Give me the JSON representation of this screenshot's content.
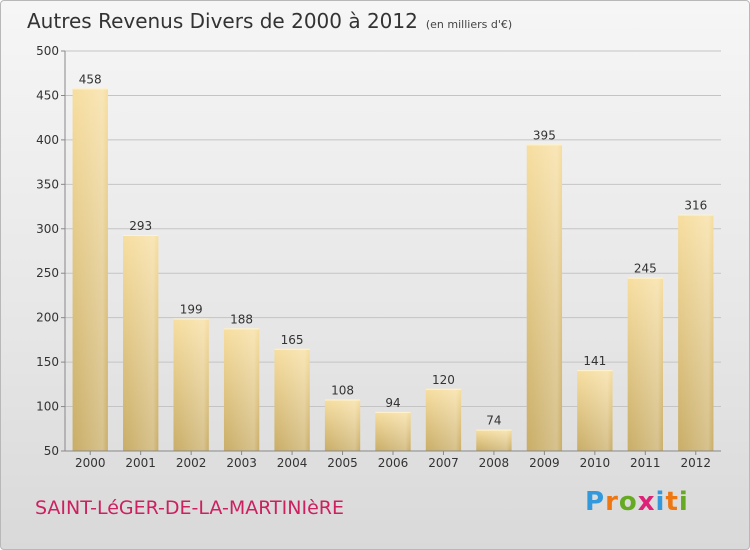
{
  "header": {
    "title": "Autres Revenus Divers de 2000 à 2012",
    "unit": "(en milliers d'€)"
  },
  "footer": {
    "city": "SAINT-LéGER-DE-LA-MARTINIèRE",
    "logo_text": "Proxiti",
    "logo_colors": [
      "#3399dd",
      "#ee7711",
      "#66aa22",
      "#dd2277",
      "#3399dd",
      "#ee7711",
      "#66aa22"
    ]
  },
  "colors": {
    "bar_light": "#f7dea0",
    "bar_dark": "#c9ad67",
    "city_text": "#cc2060"
  },
  "chart_data": {
    "type": "bar",
    "title": "Autres Revenus Divers de 2000 à 2012",
    "subtitle": "(en milliers d'€)",
    "categories": [
      "2000",
      "2001",
      "2002",
      "2003",
      "2004",
      "2005",
      "2006",
      "2007",
      "2008",
      "2009",
      "2010",
      "2011",
      "2012"
    ],
    "values": [
      458,
      293,
      199,
      188,
      165,
      108,
      94,
      120,
      74,
      395,
      141,
      245,
      316
    ],
    "ylim": [
      50,
      500
    ],
    "yticks": [
      50,
      100,
      150,
      200,
      250,
      300,
      350,
      400,
      450,
      500
    ],
    "grid": true,
    "xlabel": "",
    "ylabel": ""
  }
}
